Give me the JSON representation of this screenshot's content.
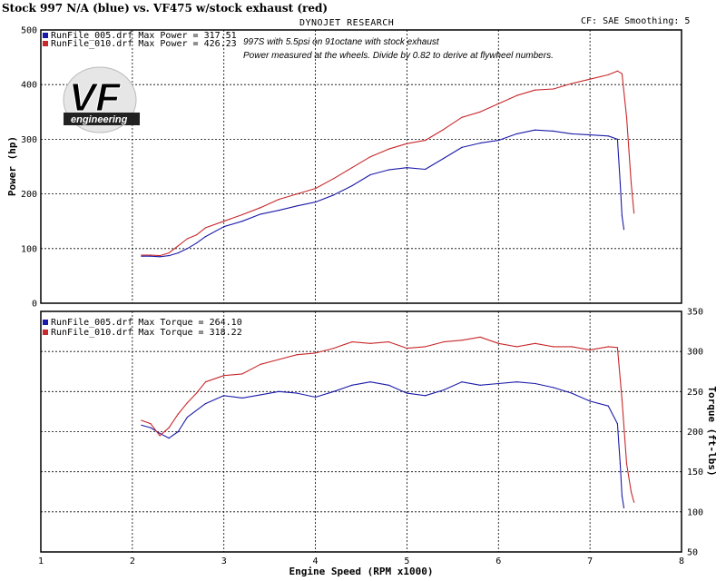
{
  "header": {
    "title": "Stock 997 N/A (blue) vs. VF475 w/stock exhaust (red)",
    "center": "DYNOJET RESEARCH",
    "right": "CF: SAE  Smoothing: 5"
  },
  "logo": {
    "big": "VF",
    "sub": "engineering"
  },
  "annotations": {
    "line1": "997S with 5.5psi on 91octane with stock exhaust",
    "line2": "Power measured at the wheels. Divide by 0.82 to derive at flywheel numbers."
  },
  "colors": {
    "blue": "#1a1aa8",
    "red": "#c8282a",
    "grid": "#000000"
  },
  "chart_data": [
    {
      "type": "line",
      "title": "",
      "xlabel": "Engine Speed (RPM x1000)",
      "ylabel": "Power (hp)",
      "xlim": [
        1,
        8
      ],
      "ylim": [
        0,
        500
      ],
      "xticks": [
        "1",
        "2",
        "3",
        "4",
        "5",
        "6",
        "7",
        "8"
      ],
      "yticks": [
        "0",
        "100",
        "200",
        "300",
        "400",
        "500"
      ],
      "grid": true,
      "legend_position": "top-left",
      "series": [
        {
          "name": "RunFile_005.drf Max Power = 317.51",
          "color": "#1a1aa8",
          "x": [
            2.1,
            2.2,
            2.3,
            2.4,
            2.5,
            2.6,
            2.7,
            2.8,
            3.0,
            3.2,
            3.4,
            3.6,
            3.8,
            4.0,
            4.2,
            4.4,
            4.6,
            4.8,
            5.0,
            5.2,
            5.4,
            5.6,
            5.8,
            6.0,
            6.2,
            6.4,
            6.6,
            6.8,
            7.0,
            7.2,
            7.3,
            7.33,
            7.35,
            7.37
          ],
          "y": [
            86,
            86,
            85,
            87,
            92,
            100,
            110,
            122,
            140,
            150,
            163,
            170,
            178,
            185,
            198,
            215,
            235,
            244,
            248,
            245,
            265,
            285,
            293,
            298,
            310,
            317,
            315,
            310,
            308,
            306,
            300,
            220,
            160,
            135
          ]
        },
        {
          "name": "RunFile_010.drf Max Power = 426.23",
          "color": "#c8282a",
          "x": [
            2.1,
            2.2,
            2.3,
            2.4,
            2.5,
            2.6,
            2.7,
            2.8,
            3.0,
            3.2,
            3.4,
            3.6,
            3.8,
            4.0,
            4.2,
            4.4,
            4.6,
            4.8,
            5.0,
            5.2,
            5.4,
            5.6,
            5.8,
            6.0,
            6.2,
            6.4,
            6.6,
            6.8,
            7.0,
            7.2,
            7.3,
            7.35,
            7.4,
            7.45,
            7.48
          ],
          "y": [
            88,
            88,
            87,
            92,
            105,
            118,
            125,
            138,
            150,
            162,
            175,
            190,
            200,
            210,
            228,
            248,
            268,
            282,
            292,
            298,
            318,
            340,
            350,
            365,
            380,
            390,
            392,
            402,
            410,
            418,
            425,
            420,
            340,
            220,
            165
          ]
        }
      ]
    },
    {
      "type": "line",
      "title": "",
      "xlabel": "Engine Speed (RPM x1000)",
      "ylabel": "Torque (ft-lbs)",
      "xlim": [
        1,
        8
      ],
      "ylim": [
        50,
        350
      ],
      "xticks": [
        "1",
        "2",
        "3",
        "4",
        "5",
        "6",
        "7",
        "8"
      ],
      "yticks": [
        "50",
        "100",
        "150",
        "200",
        "250",
        "300",
        "350"
      ],
      "grid": true,
      "legend_position": "top-left",
      "series": [
        {
          "name": "RunFile_005.drf Max Torque = 264.10",
          "color": "#1a1aa8",
          "x": [
            2.1,
            2.2,
            2.3,
            2.4,
            2.5,
            2.6,
            2.8,
            3.0,
            3.2,
            3.4,
            3.6,
            3.8,
            4.0,
            4.2,
            4.4,
            4.6,
            4.8,
            5.0,
            5.2,
            5.4,
            5.6,
            5.8,
            6.0,
            6.2,
            6.4,
            6.6,
            6.8,
            7.0,
            7.2,
            7.3,
            7.33,
            7.35,
            7.37
          ],
          "y": [
            208,
            205,
            198,
            192,
            200,
            218,
            235,
            245,
            242,
            246,
            250,
            248,
            243,
            250,
            258,
            262,
            258,
            248,
            245,
            252,
            262,
            258,
            260,
            262,
            260,
            255,
            248,
            238,
            232,
            210,
            160,
            120,
            105
          ]
        },
        {
          "name": "RunFile_010.drf Max Torque = 318.22",
          "color": "#c8282a",
          "x": [
            2.1,
            2.2,
            2.3,
            2.4,
            2.5,
            2.6,
            2.7,
            2.8,
            3.0,
            3.2,
            3.4,
            3.6,
            3.8,
            4.0,
            4.2,
            4.4,
            4.6,
            4.8,
            5.0,
            5.2,
            5.4,
            5.6,
            5.8,
            6.0,
            6.2,
            6.4,
            6.6,
            6.8,
            7.0,
            7.2,
            7.3,
            7.35,
            7.4,
            7.45,
            7.48
          ],
          "y": [
            214,
            210,
            195,
            205,
            222,
            236,
            248,
            262,
            270,
            272,
            284,
            290,
            296,
            298,
            304,
            312,
            310,
            312,
            304,
            306,
            312,
            314,
            318,
            310,
            306,
            310,
            306,
            306,
            302,
            306,
            305,
            240,
            160,
            125,
            112
          ]
        }
      ]
    }
  ]
}
